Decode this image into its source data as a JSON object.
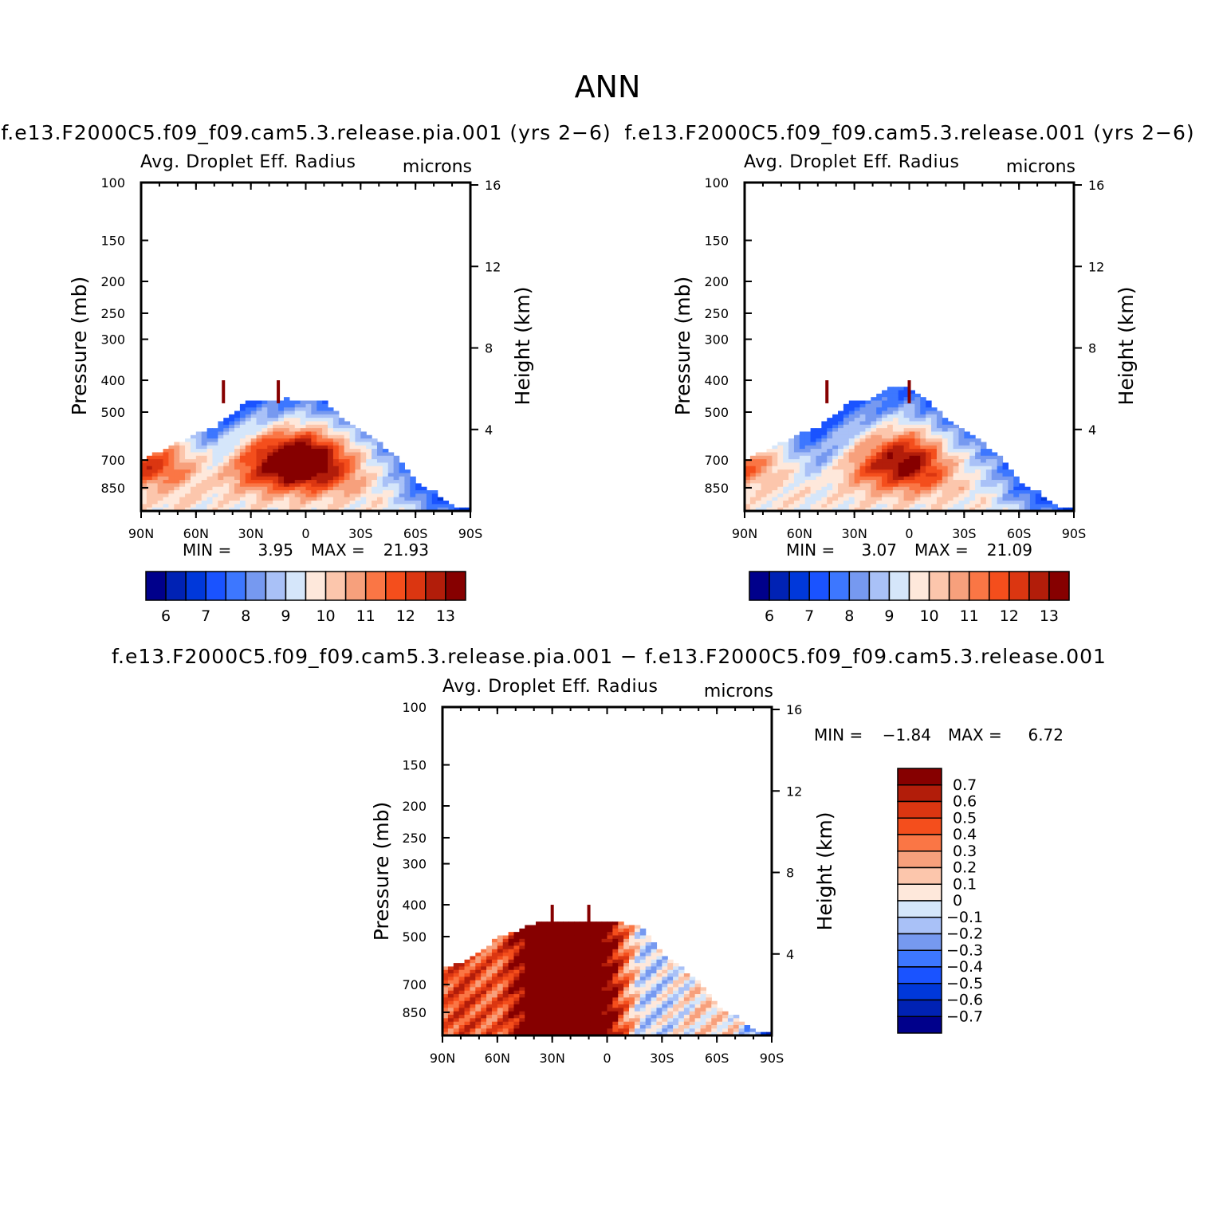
{
  "figure": {
    "title": "ANN",
    "diff_title": "f.e13.F2000C5.f09_f09.cam5.3.release.pia.001 − f.e13.F2000C5.f09_f09.cam5.3.release.001"
  },
  "colors": {
    "absolute_levels": [
      "#00008b",
      "#0022b4",
      "#0038da",
      "#1a53ff",
      "#3d77ff",
      "#7699f0",
      "#a9c1f7",
      "#d5e6fa",
      "#fee8db",
      "#fcc6ac",
      "#f7a07c",
      "#fa7645",
      "#f44e1c",
      "#db3611",
      "#b21d0a",
      "#860000"
    ],
    "diff_levels": [
      "#860000",
      "#b21d0a",
      "#db3611",
      "#f44e1c",
      "#fa7645",
      "#f7a07c",
      "#fcc6ac",
      "#fee8db",
      "#d5e6fa",
      "#a9c1f7",
      "#7699f0",
      "#3d77ff",
      "#1a53ff",
      "#0038da",
      "#0022b4",
      "#00008b"
    ],
    "missing": "#ffffff",
    "axes": "#000000"
  },
  "chart_data": [
    {
      "type": "heatmap",
      "id": "panel_pia",
      "title": "f.e13.F2000C5.f09_f09.cam5.3.release.pia.001 (yrs 2−6)",
      "variable": "Avg. Droplet Eff. Radius",
      "units": "microns",
      "xlabel": "",
      "ylabel": "Pressure (mb)",
      "y2label": "Height (km)",
      "x_ticks": [
        "90N",
        "60N",
        "30N",
        "0",
        "30S",
        "60S",
        "90S"
      ],
      "x_range": [
        90,
        -90
      ],
      "y_ticks": [
        100,
        150,
        200,
        250,
        300,
        400,
        500,
        700,
        850
      ],
      "y_range": [
        100,
        1000
      ],
      "y_scale": "log",
      "y2_ticks": [
        16,
        12,
        8,
        4
      ],
      "stats": {
        "min_label": "MIN =",
        "min": "3.95",
        "max_label": "MAX =",
        "max": "21.93"
      },
      "colorbar": {
        "orientation": "horizontal",
        "labels": [
          "6",
          "7",
          "8",
          "9",
          "10",
          "11",
          "12",
          "13"
        ],
        "levels": [
          5.5,
          6,
          6.5,
          7,
          7.5,
          8,
          8.5,
          9,
          9.5,
          10,
          10.5,
          11,
          11.5,
          12,
          12.5,
          13,
          13.5
        ]
      },
      "field": {
        "lat": [
          -90,
          -80,
          -70,
          -60,
          -50,
          -40,
          -30,
          -20,
          -10,
          0,
          10,
          20,
          30,
          40,
          50,
          60,
          70,
          80,
          90
        ],
        "pressure": [
          450,
          500,
          550,
          600,
          650,
          700,
          750,
          800,
          850,
          900,
          950
        ],
        "cloud_top_by_lat": [
          990,
          960,
          870,
          810,
          690,
          620,
          560,
          520,
          460,
          460,
          455,
          460,
          460,
          500,
          560,
          580,
          620,
          660,
          700
        ],
        "anomaly": [
          0,
          0,
          0.2,
          0.3,
          0.4,
          0.6,
          1.0,
          1.6,
          2.2,
          2.8,
          2.6,
          2.1,
          1.4,
          0.8,
          0.6,
          0.9,
          1.6,
          2.2,
          2.6
        ],
        "spikes": [
          {
            "lat": 45,
            "top": 400
          },
          {
            "lat": 15,
            "top": 400
          }
        ]
      }
    },
    {
      "type": "heatmap",
      "id": "panel_ctl",
      "title": "f.e13.F2000C5.f09_f09.cam5.3.release.001 (yrs 2−6)",
      "variable": "Avg. Droplet Eff. Radius",
      "units": "microns",
      "xlabel": "",
      "ylabel": "Pressure (mb)",
      "y2label": "Height (km)",
      "x_ticks": [
        "90N",
        "60N",
        "30N",
        "0",
        "30S",
        "60S",
        "90S"
      ],
      "x_range": [
        90,
        -90
      ],
      "y_ticks": [
        100,
        150,
        200,
        250,
        300,
        400,
        500,
        700,
        850
      ],
      "y_range": [
        100,
        1000
      ],
      "y_scale": "log",
      "y2_ticks": [
        16,
        12,
        8,
        4
      ],
      "stats": {
        "min_label": "MIN =",
        "min": "3.07",
        "max_label": "MAX =",
        "max": "21.09"
      },
      "colorbar": {
        "orientation": "horizontal",
        "labels": [
          "6",
          "7",
          "8",
          "9",
          "10",
          "11",
          "12",
          "13"
        ],
        "levels": [
          5.5,
          6,
          6.5,
          7,
          7.5,
          8,
          8.5,
          9,
          9.5,
          10,
          10.5,
          11,
          11.5,
          12,
          12.5,
          13,
          13.5
        ]
      },
      "field": {
        "lat": [
          -90,
          -80,
          -70,
          -60,
          -50,
          -40,
          -30,
          -20,
          -10,
          0,
          10,
          20,
          30,
          40,
          50,
          60,
          70,
          80,
          90
        ],
        "pressure": [
          450,
          500,
          550,
          600,
          650,
          700,
          750,
          800,
          850,
          900,
          950
        ],
        "cloud_top_by_lat": [
          990,
          960,
          870,
          810,
          690,
          620,
          560,
          520,
          460,
          420,
          420,
          455,
          460,
          500,
          560,
          580,
          620,
          660,
          700
        ],
        "anomaly": [
          0,
          0,
          0.1,
          0.2,
          0.3,
          0.4,
          0.6,
          1.0,
          1.6,
          2.0,
          1.8,
          1.4,
          0.8,
          0.3,
          0.1,
          0.4,
          1.0,
          1.6,
          2.2
        ],
        "spikes": [
          {
            "lat": 45,
            "top": 400
          },
          {
            "lat": 0,
            "top": 400
          }
        ]
      }
    },
    {
      "type": "heatmap",
      "id": "panel_diff",
      "title": "",
      "variable": "Avg. Droplet Eff. Radius",
      "units": "microns",
      "xlabel": "",
      "ylabel": "Pressure (mb)",
      "y2label": "Height (km)",
      "x_ticks": [
        "90N",
        "60N",
        "30N",
        "0",
        "30S",
        "60S",
        "90S"
      ],
      "x_range": [
        90,
        -90
      ],
      "y_ticks": [
        100,
        150,
        200,
        250,
        300,
        400,
        500,
        700,
        850
      ],
      "y_range": [
        100,
        1000
      ],
      "y_scale": "log",
      "y2_ticks": [
        16,
        12,
        8,
        4
      ],
      "stats": {
        "min_label": "MIN =",
        "min": "−1.84",
        "max_label": "MAX =",
        "max": "6.72"
      },
      "colorbar": {
        "orientation": "vertical",
        "labels": [
          "0.7",
          "0.6",
          "0.5",
          "0.4",
          "0.3",
          "0.2",
          "0.1",
          "0",
          "−0.1",
          "−0.2",
          "−0.3",
          "−0.4",
          "−0.5",
          "−0.6",
          "−0.7"
        ]
      },
      "field": {
        "lat": [
          -90,
          -80,
          -70,
          -60,
          -50,
          -40,
          -30,
          -20,
          -10,
          0,
          10,
          20,
          30,
          40,
          50,
          60,
          70,
          80,
          90
        ],
        "pressure": [
          450,
          500,
          550,
          600,
          650,
          700,
          750,
          800,
          850,
          900,
          950
        ],
        "cloud_top_by_lat": [
          990,
          960,
          870,
          810,
          690,
          620,
          560,
          470,
          455,
          455,
          455,
          455,
          455,
          455,
          480,
          500,
          560,
          600,
          620
        ],
        "diff_by_lat": [
          -0.6,
          -0.3,
          0.0,
          0.05,
          0.05,
          -0.05,
          -0.1,
          -0.15,
          0.3,
          0.8,
          0.9,
          0.85,
          0.9,
          0.95,
          0.6,
          0.35,
          0.4,
          0.45,
          0.35
        ],
        "spikes": [
          {
            "lat": 30,
            "top": 400
          },
          {
            "lat": 10,
            "top": 400
          }
        ]
      }
    }
  ]
}
